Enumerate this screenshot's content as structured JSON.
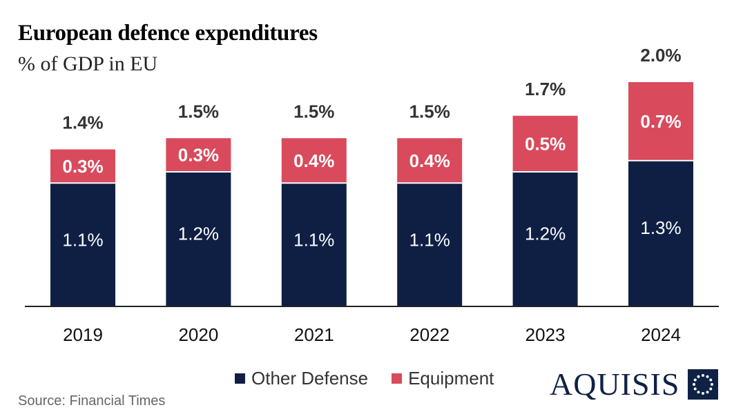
{
  "title": "European defence expenditures",
  "subtitle": "% of GDP in EU",
  "source": "Source: Financial Times",
  "brand": {
    "name": "AQUISIS",
    "logo_icon": "star-ring-logo-icon"
  },
  "colors": {
    "other_defense": "#0f1f44",
    "equipment": "#d94a5c",
    "axis": "#222222",
    "total_label": "#333333"
  },
  "legend": [
    {
      "label": "Other Defense",
      "color": "#0f1f44"
    },
    {
      "label": "Equipment",
      "color": "#d94a5c"
    }
  ],
  "chart_data": {
    "type": "bar",
    "stacked": true,
    "title": "European defence expenditures",
    "subtitle": "% of GDP in EU",
    "xlabel": "",
    "ylabel": "",
    "ylim": [
      0,
      2.0
    ],
    "categories": [
      "2019",
      "2020",
      "2021",
      "2022",
      "2023",
      "2024"
    ],
    "series": [
      {
        "name": "Other Defense",
        "values": [
          1.1,
          1.2,
          1.1,
          1.1,
          1.2,
          1.3
        ],
        "labels": [
          "1.1%",
          "1.2%",
          "1.1%",
          "1.1%",
          "1.2%",
          "1.3%"
        ]
      },
      {
        "name": "Equipment",
        "values": [
          0.3,
          0.3,
          0.4,
          0.4,
          0.5,
          0.7
        ],
        "labels": [
          "0.3%",
          "0.3%",
          "0.4%",
          "0.4%",
          "0.5%",
          "0.7%"
        ]
      }
    ],
    "totals": [
      1.4,
      1.5,
      1.5,
      1.5,
      1.7,
      2.0
    ],
    "total_labels": [
      "1.4%",
      "1.5%",
      "1.5%",
      "1.5%",
      "1.7%",
      "2.0%"
    ],
    "grid": false,
    "legend_position": "bottom"
  }
}
